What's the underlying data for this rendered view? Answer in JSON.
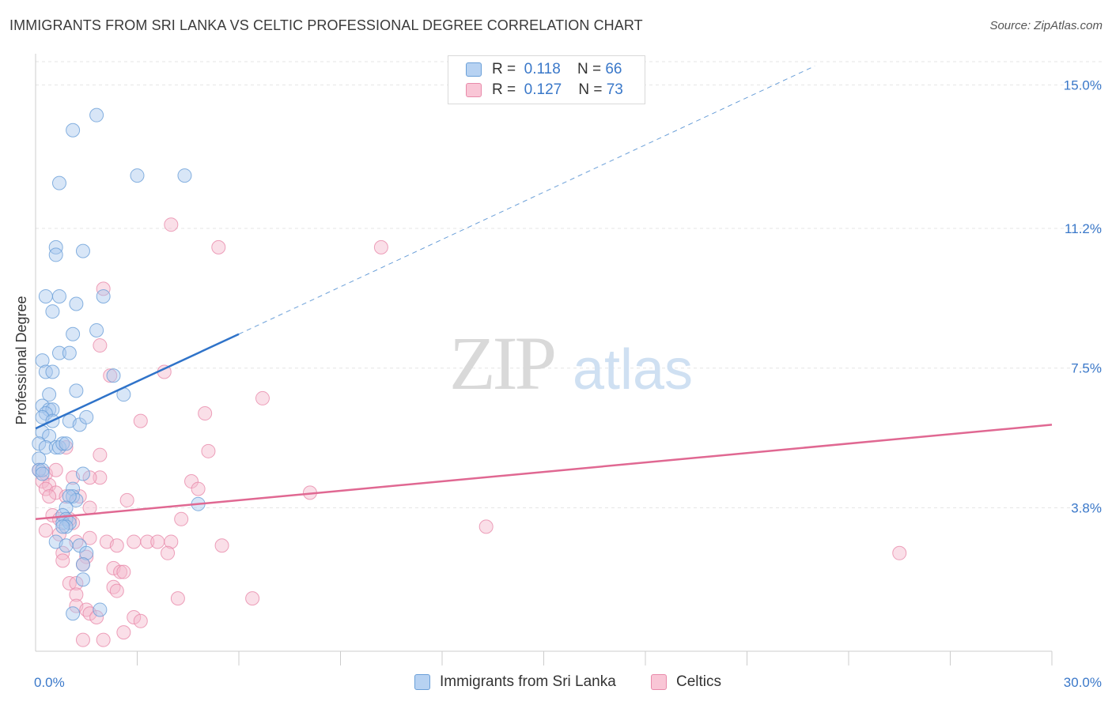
{
  "title": "IMMIGRANTS FROM SRI LANKA VS CELTIC PROFESSIONAL DEGREE CORRELATION CHART",
  "source": "Source: ZipAtlas.com",
  "watermark": {
    "zip": "ZIP",
    "atlas": "atlas"
  },
  "legend": {
    "rows": [
      {
        "r_label": "R =",
        "r_value": "0.118",
        "n_label": "N =",
        "n_value": "66"
      },
      {
        "r_label": "R =",
        "r_value": "0.127",
        "n_label": "N =",
        "n_value": "73"
      }
    ]
  },
  "bottom_legend": [
    "Immigrants from Sri Lanka",
    "Celtics"
  ],
  "colors": {
    "blue_fill": "#a8c8ee",
    "blue_stroke": "#6a9fd8",
    "blue_line": "#2f73c9",
    "pink_fill": "#f5b8cc",
    "pink_stroke": "#e88aaa",
    "pink_line": "#e06892",
    "axis_label": "#3a78c9",
    "grid": "#e6e6e6"
  },
  "chart_data": {
    "type": "scatter",
    "title": "IMMIGRANTS FROM SRI LANKA VS CELTIC PROFESSIONAL DEGREE CORRELATION CHART",
    "xlabel": "",
    "ylabel": "Professional Degree",
    "xlim": [
      0,
      30
    ],
    "ylim": [
      0,
      15.7
    ],
    "x_tick_labels": [
      {
        "value": 0,
        "label": "0.0%"
      },
      {
        "value": 30,
        "label": "30.0%"
      }
    ],
    "y_tick_labels": [
      {
        "value": 3.8,
        "label": "3.8%"
      },
      {
        "value": 7.5,
        "label": "7.5%"
      },
      {
        "value": 11.2,
        "label": "11.2%"
      },
      {
        "value": 15.0,
        "label": "15.0%"
      }
    ],
    "series": [
      {
        "name": "Immigrants from Sri Lanka",
        "color": "#a8c8ee",
        "trend": {
          "x0": 0,
          "y0": 5.9,
          "x1": 6.0,
          "y1": 8.4,
          "dashed_to_x": 23.0,
          "dashed_to_y": 15.5
        },
        "points": [
          [
            1.8,
            14.2
          ],
          [
            1.1,
            13.8
          ],
          [
            0.7,
            12.4
          ],
          [
            3.0,
            12.6
          ],
          [
            4.4,
            12.6
          ],
          [
            0.6,
            10.7
          ],
          [
            0.6,
            10.5
          ],
          [
            1.4,
            10.6
          ],
          [
            0.3,
            9.4
          ],
          [
            0.7,
            9.4
          ],
          [
            2.0,
            9.4
          ],
          [
            0.5,
            9.0
          ],
          [
            1.2,
            9.2
          ],
          [
            1.1,
            8.4
          ],
          [
            1.8,
            8.5
          ],
          [
            0.2,
            7.7
          ],
          [
            0.7,
            7.9
          ],
          [
            1.0,
            7.9
          ],
          [
            0.3,
            7.4
          ],
          [
            0.5,
            7.4
          ],
          [
            2.3,
            7.3
          ],
          [
            1.2,
            6.9
          ],
          [
            0.4,
            6.8
          ],
          [
            2.6,
            6.8
          ],
          [
            0.2,
            6.5
          ],
          [
            0.4,
            6.4
          ],
          [
            0.5,
            6.4
          ],
          [
            0.3,
            6.3
          ],
          [
            0.2,
            6.2
          ],
          [
            0.5,
            6.1
          ],
          [
            1.0,
            6.1
          ],
          [
            1.3,
            6.0
          ],
          [
            1.5,
            6.2
          ],
          [
            0.2,
            5.8
          ],
          [
            0.4,
            5.7
          ],
          [
            0.1,
            5.5
          ],
          [
            0.3,
            5.4
          ],
          [
            0.6,
            5.4
          ],
          [
            0.7,
            5.4
          ],
          [
            0.8,
            5.5
          ],
          [
            0.9,
            5.5
          ],
          [
            0.1,
            5.1
          ],
          [
            0.1,
            4.8
          ],
          [
            0.2,
            4.8
          ],
          [
            1.4,
            4.7
          ],
          [
            1.1,
            4.3
          ],
          [
            1.1,
            4.1
          ],
          [
            1.2,
            4.0
          ],
          [
            1.0,
            4.1
          ],
          [
            0.9,
            3.8
          ],
          [
            0.8,
            3.6
          ],
          [
            0.9,
            3.5
          ],
          [
            0.8,
            3.4
          ],
          [
            1.0,
            3.4
          ],
          [
            0.9,
            3.3
          ],
          [
            4.8,
            3.9
          ],
          [
            0.6,
            2.9
          ],
          [
            1.3,
            2.8
          ],
          [
            1.5,
            2.6
          ],
          [
            1.4,
            2.3
          ],
          [
            1.4,
            1.9
          ],
          [
            1.1,
            1.0
          ],
          [
            1.9,
            1.1
          ],
          [
            0.8,
            3.3
          ],
          [
            0.9,
            2.8
          ],
          [
            0.2,
            4.7
          ]
        ]
      },
      {
        "name": "Celtics",
        "color": "#f5b8cc",
        "trend": {
          "x0": 0,
          "y0": 3.5,
          "x1": 30,
          "y1": 6.0
        },
        "points": [
          [
            4.0,
            11.3
          ],
          [
            5.4,
            10.7
          ],
          [
            10.2,
            10.7
          ],
          [
            2.0,
            9.6
          ],
          [
            1.9,
            8.1
          ],
          [
            3.8,
            7.4
          ],
          [
            2.2,
            7.3
          ],
          [
            6.7,
            6.7
          ],
          [
            5.0,
            6.3
          ],
          [
            3.1,
            6.1
          ],
          [
            0.9,
            5.4
          ],
          [
            1.9,
            5.2
          ],
          [
            5.1,
            5.3
          ],
          [
            0.1,
            4.8
          ],
          [
            0.3,
            4.7
          ],
          [
            1.1,
            4.6
          ],
          [
            1.9,
            4.6
          ],
          [
            4.6,
            4.5
          ],
          [
            0.2,
            4.5
          ],
          [
            0.4,
            4.4
          ],
          [
            0.3,
            4.3
          ],
          [
            0.6,
            4.2
          ],
          [
            8.1,
            4.2
          ],
          [
            4.8,
            4.3
          ],
          [
            1.3,
            4.1
          ],
          [
            0.9,
            4.1
          ],
          [
            2.7,
            4.0
          ],
          [
            1.6,
            3.8
          ],
          [
            0.5,
            3.6
          ],
          [
            0.7,
            3.5
          ],
          [
            1.1,
            3.4
          ],
          [
            4.3,
            3.5
          ],
          [
            13.3,
            3.3
          ],
          [
            0.3,
            3.2
          ],
          [
            0.7,
            3.1
          ],
          [
            1.6,
            3.0
          ],
          [
            2.1,
            2.9
          ],
          [
            2.9,
            2.9
          ],
          [
            3.3,
            2.9
          ],
          [
            3.6,
            2.9
          ],
          [
            4.0,
            2.9
          ],
          [
            5.5,
            2.8
          ],
          [
            2.4,
            2.8
          ],
          [
            0.8,
            2.6
          ],
          [
            3.9,
            2.6
          ],
          [
            1.5,
            2.5
          ],
          [
            25.5,
            2.6
          ],
          [
            0.8,
            2.4
          ],
          [
            1.4,
            2.3
          ],
          [
            2.3,
            2.2
          ],
          [
            2.5,
            2.1
          ],
          [
            2.6,
            2.1
          ],
          [
            1.0,
            1.8
          ],
          [
            1.2,
            1.8
          ],
          [
            2.3,
            1.7
          ],
          [
            2.4,
            1.6
          ],
          [
            1.2,
            1.5
          ],
          [
            4.2,
            1.4
          ],
          [
            6.4,
            1.4
          ],
          [
            1.2,
            1.2
          ],
          [
            1.5,
            1.1
          ],
          [
            1.6,
            1.0
          ],
          [
            1.8,
            0.9
          ],
          [
            2.9,
            0.9
          ],
          [
            3.1,
            0.8
          ],
          [
            2.6,
            0.5
          ],
          [
            1.4,
            0.3
          ],
          [
            2.0,
            0.3
          ],
          [
            0.6,
            4.8
          ],
          [
            0.4,
            4.1
          ],
          [
            1.6,
            4.6
          ],
          [
            1.0,
            3.5
          ],
          [
            1.2,
            2.9
          ]
        ]
      }
    ]
  }
}
